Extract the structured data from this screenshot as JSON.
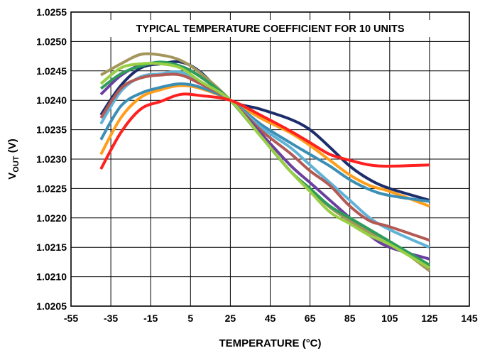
{
  "chart_data": {
    "type": "line",
    "title": "TYPICAL TEMPERATURE COEFFICIENT FOR 10 UNITS",
    "xlabel": "TEMPERATURE (°C)",
    "ylabel_main": "V",
    "ylabel_sub": "OUT",
    "ylabel_unit": " (V)",
    "xlim": [
      -55,
      145
    ],
    "ylim": [
      1.0205,
      1.0255
    ],
    "x_ticks": [
      -55,
      -35,
      -15,
      5,
      25,
      45,
      65,
      85,
      105,
      125,
      145
    ],
    "x_tick_labels": [
      "-55",
      "-35",
      "-15",
      "5",
      "25",
      "45",
      "65",
      "85",
      "105",
      "125",
      "145"
    ],
    "y_ticks": [
      1.0205,
      1.021,
      1.0215,
      1.022,
      1.0225,
      1.023,
      1.0235,
      1.024,
      1.0245,
      1.025,
      1.0255
    ],
    "y_tick_labels": [
      "1.0205",
      "1.0210",
      "1.0215",
      "1.0220",
      "1.0225",
      "1.0230",
      "1.0235",
      "1.0240",
      "1.0245",
      "1.0250",
      "1.0255"
    ],
    "grid": true,
    "x": [
      -40,
      -30,
      -20,
      -10,
      0,
      10,
      25,
      40,
      55,
      65,
      75,
      85,
      95,
      105,
      125
    ],
    "series": [
      {
        "color": "#1c2d6b",
        "values": [
          1.02375,
          1.02425,
          1.02455,
          1.02462,
          1.02465,
          1.02448,
          1.024,
          1.02385,
          1.02368,
          1.0235,
          1.0232,
          1.02288,
          1.02265,
          1.0225,
          1.0223
        ]
      },
      {
        "color": "#ff2020",
        "values": [
          1.02283,
          1.02345,
          1.02385,
          1.02398,
          1.0241,
          1.02408,
          1.024,
          1.02375,
          1.02348,
          1.02328,
          1.02308,
          1.02298,
          1.0229,
          1.02288,
          1.0229
        ]
      },
      {
        "color": "#ff9e1b",
        "values": [
          1.02308,
          1.0237,
          1.02405,
          1.02418,
          1.02425,
          1.0242,
          1.024,
          1.0237,
          1.02345,
          1.02323,
          1.02298,
          1.02273,
          1.02255,
          1.02245,
          1.0222
        ]
      },
      {
        "color": "#3b8fb5",
        "values": [
          1.02333,
          1.0239,
          1.02412,
          1.02422,
          1.02428,
          1.02422,
          1.024,
          1.0236,
          1.02328,
          1.02308,
          1.02288,
          1.02265,
          1.02248,
          1.02238,
          1.02228
        ]
      },
      {
        "color": "#5fb3d6",
        "values": [
          1.0236,
          1.02415,
          1.0244,
          1.02445,
          1.02448,
          1.0243,
          1.024,
          1.02355,
          1.0232,
          1.0229,
          1.0226,
          1.0223,
          1.022,
          1.0218,
          1.0215
        ]
      },
      {
        "color": "#b35a55",
        "values": [
          1.0237,
          1.0242,
          1.02438,
          1.02443,
          1.02443,
          1.02428,
          1.024,
          1.0235,
          1.0231,
          1.0228,
          1.02255,
          1.0222,
          1.02195,
          1.02185,
          1.02162
        ]
      },
      {
        "color": "#6b3fa0",
        "values": [
          1.0241,
          1.02442,
          1.0246,
          1.02462,
          1.02458,
          1.0244,
          1.024,
          1.02345,
          1.0229,
          1.0226,
          1.0223,
          1.022,
          1.0217,
          1.0215,
          1.0213
        ]
      },
      {
        "color": "#a3965a",
        "values": [
          1.02443,
          1.02462,
          1.02478,
          1.02477,
          1.02468,
          1.02446,
          1.024,
          1.0234,
          1.0228,
          1.02248,
          1.02218,
          1.02195,
          1.02175,
          1.0216,
          1.0211
        ]
      },
      {
        "color": "#2e9d5a",
        "values": [
          1.0242,
          1.02445,
          1.02458,
          1.02465,
          1.02458,
          1.0244,
          1.024,
          1.0234,
          1.0228,
          1.0225,
          1.0222,
          1.022,
          1.0218,
          1.0216,
          1.0212
        ]
      },
      {
        "color": "#98cf45",
        "values": [
          1.02428,
          1.02455,
          1.02462,
          1.02462,
          1.02455,
          1.02432,
          1.024,
          1.0234,
          1.0228,
          1.02245,
          1.0221,
          1.0219,
          1.0217,
          1.02155,
          1.02115
        ]
      }
    ]
  }
}
